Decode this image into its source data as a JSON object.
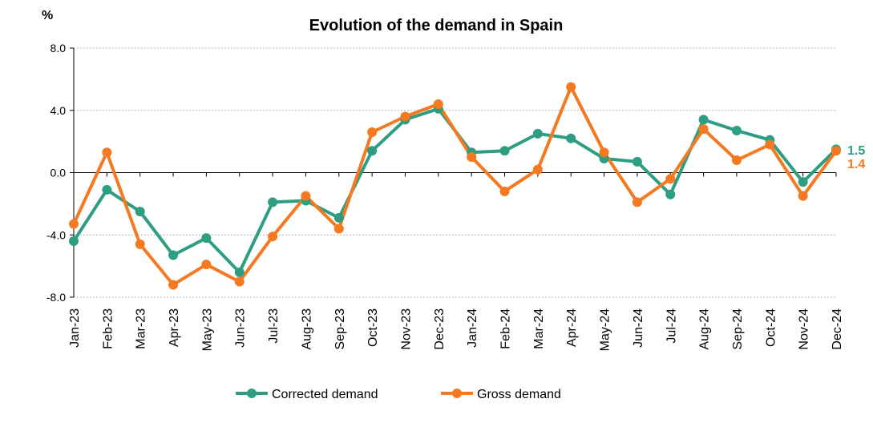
{
  "chart_data": {
    "type": "line",
    "title": "Evolution of the demand in Spain",
    "ylabel": "%",
    "xlabel": "",
    "ylim": [
      -8.0,
      8.0
    ],
    "yticks": [
      -8.0,
      -4.0,
      0.0,
      4.0,
      8.0
    ],
    "ytick_labels": [
      "-8.0",
      "-4.0",
      "0.0",
      "4.0",
      "8.0"
    ],
    "grid": true,
    "legend_position": "bottom-center",
    "categories": [
      "Jan-23",
      "Feb-23",
      "Mar-23",
      "Apr-23",
      "May-23",
      "Jun-23",
      "Jul-23",
      "Aug-23",
      "Sep-23",
      "Oct-23",
      "Nov-23",
      "Dec-23",
      "Jan-24",
      "Feb-24",
      "Mar-24",
      "Apr-24",
      "May-24",
      "Jun-24",
      "Jul-24",
      "Aug-24",
      "Sep-24",
      "Oct-24",
      "Nov-24",
      "Dec-24"
    ],
    "series": [
      {
        "name": "Corrected demand",
        "color": "#2E9E83",
        "values": [
          -4.4,
          -1.1,
          -2.5,
          -5.3,
          -4.2,
          -6.4,
          -1.9,
          -1.8,
          -2.9,
          1.4,
          3.4,
          4.1,
          1.3,
          1.4,
          2.5,
          2.2,
          0.9,
          0.7,
          -1.4,
          3.4,
          2.7,
          2.1,
          -0.6,
          1.5
        ],
        "end_label": "1.5"
      },
      {
        "name": "Gross demand",
        "color": "#F47920",
        "values": [
          -3.3,
          1.3,
          -4.6,
          -7.2,
          -5.9,
          -7.0,
          -4.1,
          -1.5,
          -3.6,
          2.6,
          3.6,
          4.4,
          1.0,
          -1.2,
          0.2,
          5.5,
          1.3,
          -1.9,
          -0.4,
          2.8,
          0.8,
          1.8,
          -1.5,
          1.4
        ],
        "end_label": "1.4"
      }
    ]
  }
}
